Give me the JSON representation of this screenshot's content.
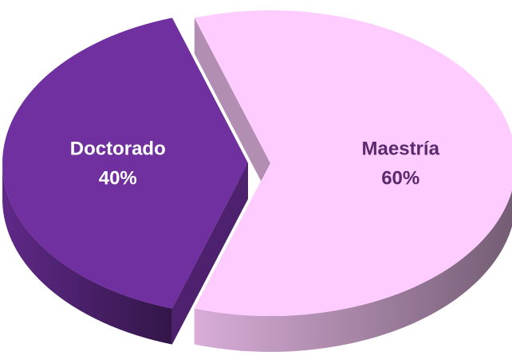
{
  "chart_data": {
    "type": "pie",
    "categories": [
      "Doctorado",
      "Maestría"
    ],
    "values": [
      40,
      60
    ],
    "value_labels": [
      "40%",
      "60%"
    ],
    "colors": [
      "#7030a0",
      "#ffccff"
    ],
    "label_colors": [
      "#ffffff",
      "#5a2a6e"
    ]
  }
}
